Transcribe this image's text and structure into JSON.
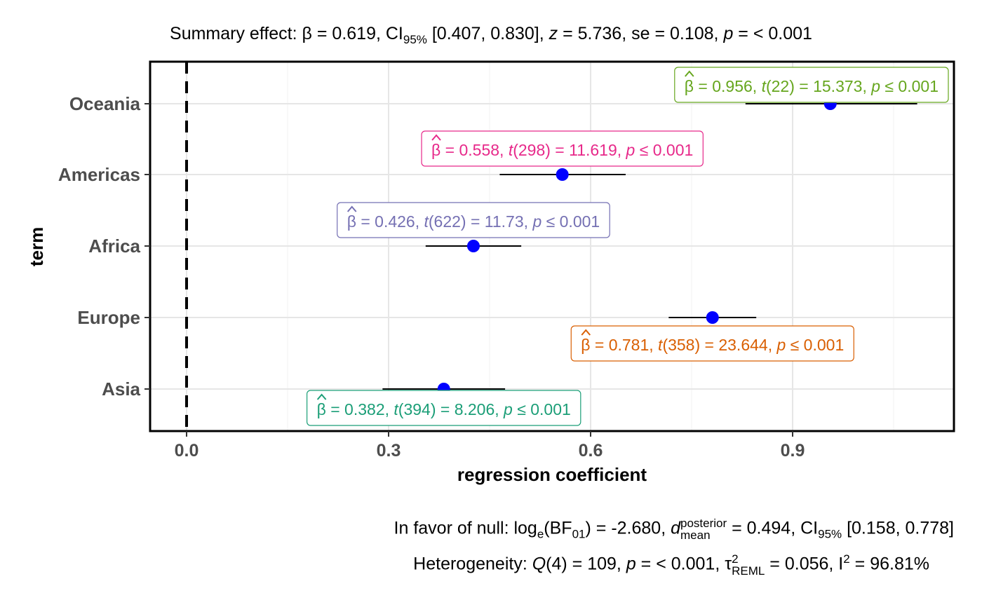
{
  "chart_data": {
    "type": "forest",
    "title": {
      "prefix": "Summary effect: ",
      "beta_symbol": "β",
      "beta_value": " = 0.619, ",
      "ci_label": "CI",
      "ci_sub": "95%",
      "ci_value": " [0.407, 0.830], ",
      "z_symbol": "z",
      "z_value": " = 5.736, se = 0.108, ",
      "p_symbol": "p",
      "p_value": " = < 0.001"
    },
    "xlabel": "regression coefficient",
    "ylabel": "term",
    "xlim": [
      -0.05,
      1.14
    ],
    "xticks": [
      0.0,
      0.3,
      0.6,
      0.9
    ],
    "xtick_labels": [
      "0.0",
      "0.3",
      "0.6",
      "0.9"
    ],
    "reference_line": 0,
    "point_color": "#0000FF",
    "categories": [
      "Oceania",
      "Americas",
      "Africa",
      "Europe",
      "Asia"
    ],
    "points": [
      {
        "term": "Oceania",
        "estimate": 0.956,
        "ci_low": 0.83,
        "ci_high": 1.085,
        "label_color": "#66A61E",
        "beta": "0.956",
        "df": "22",
        "t": "15.373",
        "label_pos": "above-left"
      },
      {
        "term": "Americas",
        "estimate": 0.558,
        "ci_low": 0.465,
        "ci_high": 0.652,
        "label_color": "#E7298A",
        "beta": "0.558",
        "df": "298",
        "t": "11.619",
        "label_pos": "above"
      },
      {
        "term": "Africa",
        "estimate": 0.426,
        "ci_low": 0.355,
        "ci_high": 0.497,
        "label_color": "#7570B3",
        "beta": "0.426",
        "df": "622",
        "t": "11.73",
        "label_pos": "above"
      },
      {
        "term": "Europe",
        "estimate": 0.781,
        "ci_low": 0.716,
        "ci_high": 0.846,
        "label_color": "#D95F02",
        "beta": "0.781",
        "df": "358",
        "t": "23.644",
        "label_pos": "below"
      },
      {
        "term": "Asia",
        "estimate": 0.382,
        "ci_low": 0.291,
        "ci_high": 0.473,
        "label_color": "#1B9E77",
        "beta": "0.382",
        "df": "394",
        "t": "8.206",
        "label_pos": "below"
      }
    ],
    "label_text": {
      "t_symbol": "t",
      "p_symbol": "p",
      "p_text": "0.001"
    },
    "caption_line1": {
      "prefix": "In favor of null: log",
      "log_sub": "e",
      "bf_open": "(BF",
      "bf_sub": "01",
      "bf_value": ") = -2.680, ",
      "d_symbol": "d",
      "d_sup": "posterior",
      "d_sub": "mean",
      "d_value": " = 0.494, CI",
      "ci_sub": "95%",
      "ci_value": " [0.158, 0.778]"
    },
    "caption_line2": {
      "prefix": "Heterogeneity: ",
      "q_symbol": "Q",
      "q_value": "(4) = 109, ",
      "p_symbol": "p",
      "p_value": " = < 0.001, ",
      "tau_symbol": "τ",
      "tau_sup": "2",
      "tau_sub": "REML",
      "tau_value": " = 0.056, I",
      "i_sup": "2",
      "i_value": " = 96.81%"
    }
  }
}
